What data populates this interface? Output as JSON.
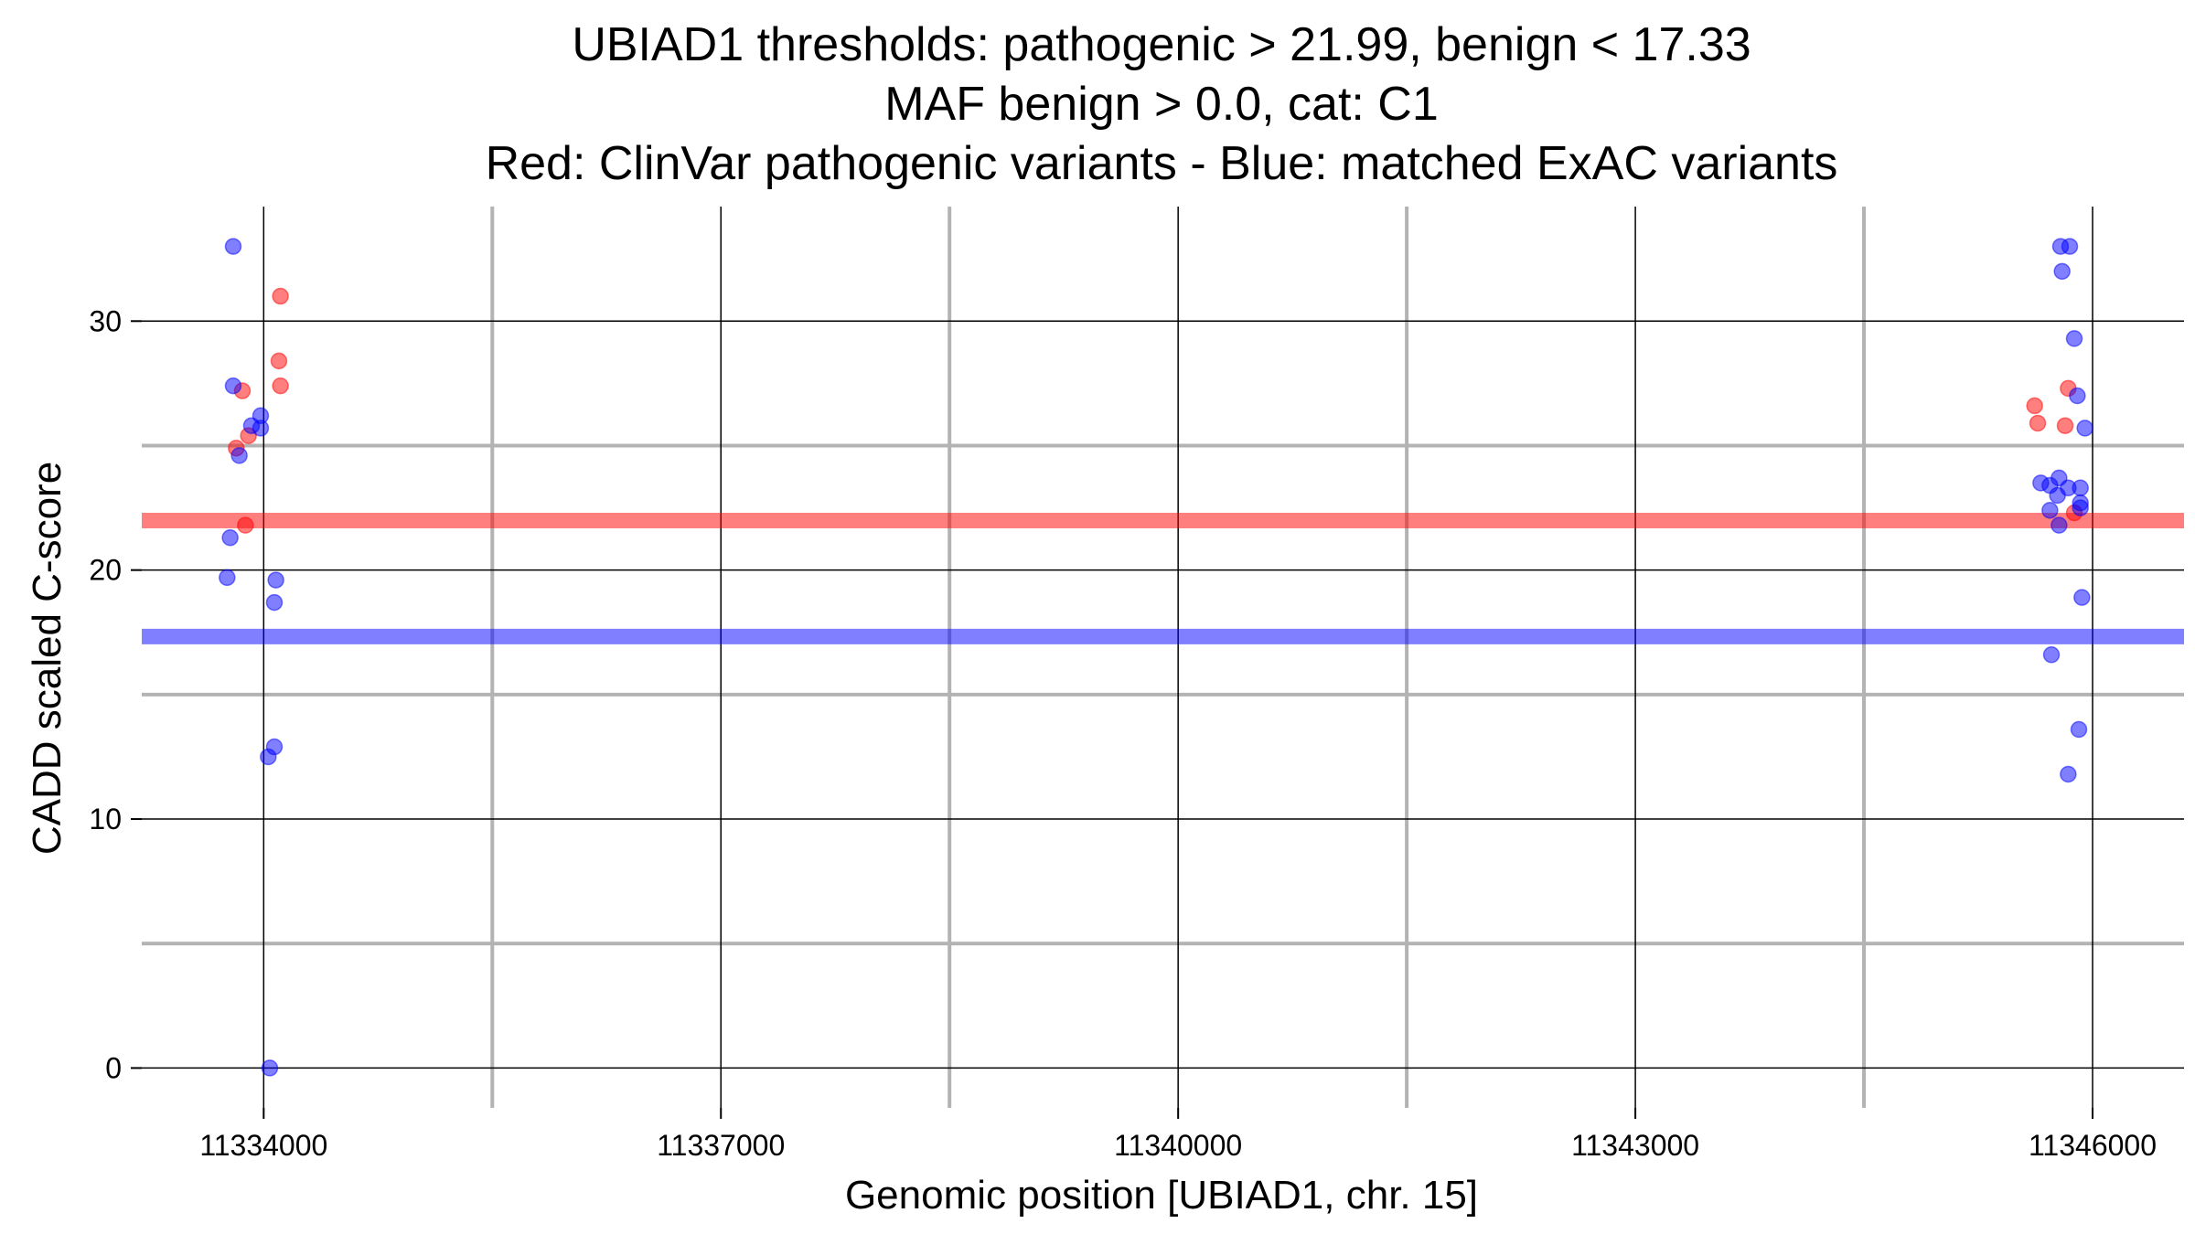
{
  "chart_data": {
    "type": "scatter",
    "title_lines": [
      "UBIAD1 thresholds: pathogenic > 21.99, benign < 17.33",
      "MAF benign > 0.0, cat: C1",
      "Red: ClinVar pathogenic variants - Blue: matched ExAC variants"
    ],
    "xlabel": "Genomic position [UBIAD1, chr. 15]",
    "ylabel": "CADD scaled C-score",
    "xlim": [
      11333200,
      11346600
    ],
    "ylim": [
      -1.6,
      34.6
    ],
    "x_ticks": [
      11334000,
      11337000,
      11340000,
      11343000,
      11346000
    ],
    "x_tick_labels": [
      "11334000",
      "11337000",
      "11340000",
      "11343000",
      "11346000"
    ],
    "y_ticks": [
      0,
      10,
      20,
      30
    ],
    "y_tick_labels": [
      "0",
      "10",
      "20",
      "30"
    ],
    "x_minor_grid": [
      11335500,
      11338500,
      11341500,
      11344500
    ],
    "y_minor_grid": [
      5,
      15,
      25
    ],
    "grid": true,
    "thresholds": [
      {
        "name": "pathogenic",
        "value": 21.99,
        "color": "#ff0000"
      },
      {
        "name": "benign",
        "value": 17.33,
        "color": "#0000ff"
      }
    ],
    "series": [
      {
        "color": "#ff0000",
        "points": [
          {
            "x": 11334110,
            "y": 31.0
          },
          {
            "x": 11334100,
            "y": 28.4
          },
          {
            "x": 11334110,
            "y": 27.4
          },
          {
            "x": 11333860,
            "y": 27.2
          },
          {
            "x": 11333900,
            "y": 25.4
          },
          {
            "x": 11333820,
            "y": 24.9
          },
          {
            "x": 11333880,
            "y": 21.8
          },
          {
            "x": 11345620,
            "y": 26.6
          },
          {
            "x": 11345640,
            "y": 25.9
          },
          {
            "x": 11345840,
            "y": 27.3
          },
          {
            "x": 11345820,
            "y": 25.8
          },
          {
            "x": 11345880,
            "y": 22.3
          }
        ]
      },
      {
        "color": "#0000ff",
        "points": [
          {
            "x": 11333800,
            "y": 33.0
          },
          {
            "x": 11333800,
            "y": 27.4
          },
          {
            "x": 11333980,
            "y": 26.2
          },
          {
            "x": 11333920,
            "y": 25.8
          },
          {
            "x": 11333980,
            "y": 25.7
          },
          {
            "x": 11333840,
            "y": 24.6
          },
          {
            "x": 11333780,
            "y": 21.3
          },
          {
            "x": 11333760,
            "y": 19.7
          },
          {
            "x": 11334080,
            "y": 19.6
          },
          {
            "x": 11334070,
            "y": 18.7
          },
          {
            "x": 11334070,
            "y": 12.9
          },
          {
            "x": 11334030,
            "y": 12.5
          },
          {
            "x": 11334040,
            "y": 0.0
          },
          {
            "x": 11345790,
            "y": 33.0
          },
          {
            "x": 11345850,
            "y": 33.0
          },
          {
            "x": 11345800,
            "y": 32.0
          },
          {
            "x": 11345880,
            "y": 29.3
          },
          {
            "x": 11345900,
            "y": 27.0
          },
          {
            "x": 11345950,
            "y": 25.7
          },
          {
            "x": 11345660,
            "y": 23.5
          },
          {
            "x": 11345720,
            "y": 23.4
          },
          {
            "x": 11345780,
            "y": 23.7
          },
          {
            "x": 11345840,
            "y": 23.3
          },
          {
            "x": 11345920,
            "y": 23.3
          },
          {
            "x": 11345770,
            "y": 23.0
          },
          {
            "x": 11345920,
            "y": 22.7
          },
          {
            "x": 11345720,
            "y": 22.4
          },
          {
            "x": 11345920,
            "y": 22.5
          },
          {
            "x": 11345780,
            "y": 21.8
          },
          {
            "x": 11345930,
            "y": 18.9
          },
          {
            "x": 11345730,
            "y": 16.6
          },
          {
            "x": 11345910,
            "y": 13.6
          },
          {
            "x": 11345840,
            "y": 11.8
          }
        ]
      }
    ]
  }
}
